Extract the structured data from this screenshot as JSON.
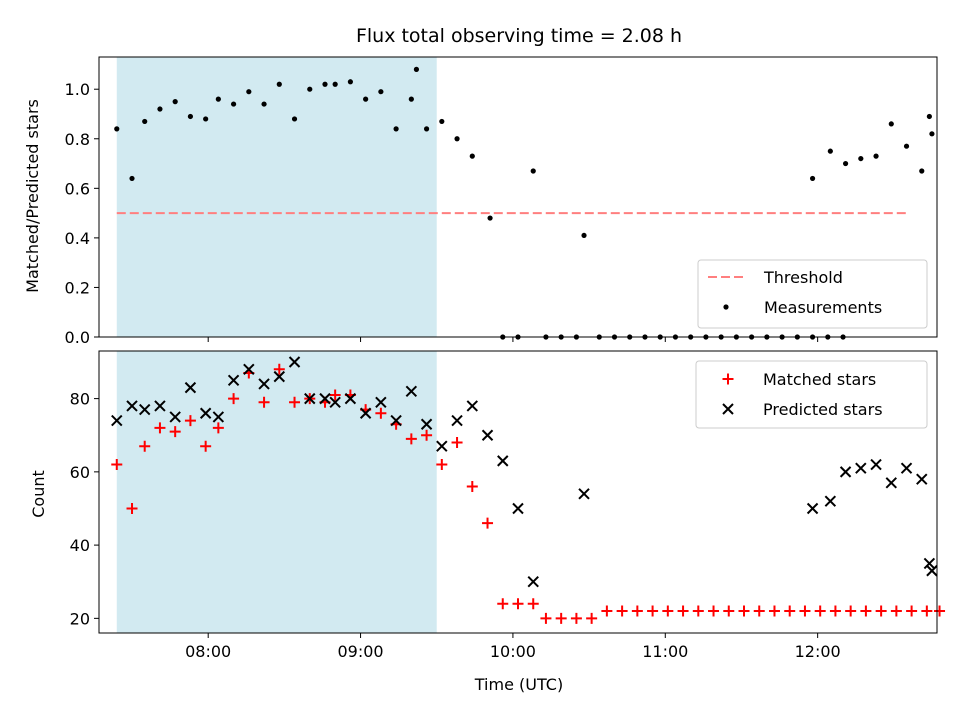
{
  "title": "Flux total observing time = 2.08 h",
  "colors": {
    "shade": "#add8e6",
    "threshold": "#ff7f7f",
    "measurement": "#000000",
    "matched": "#ff0000",
    "predicted": "#000000"
  },
  "chart_data": [
    {
      "type": "scatter",
      "ylabel": "Matched/Predicted stars",
      "xlabel": "",
      "xlim": [
        "07:17",
        "12:47"
      ],
      "ylim": [
        0,
        1.13
      ],
      "yticks": [
        "0.0",
        "0.2",
        "0.4",
        "0.6",
        "0.8",
        "1.0"
      ],
      "ytick_values": [
        0,
        0.2,
        0.4,
        0.6,
        0.8,
        1.0
      ],
      "xticks": [
        "08:00",
        "09:00",
        "10:00",
        "11:00",
        "12:00"
      ],
      "shaded_span": [
        "07:24",
        "09:30"
      ],
      "legend_placement": "lower-right",
      "threshold": {
        "name": "Threshold",
        "y": 0.5,
        "x": [
          "07:24",
          "12:35"
        ]
      },
      "series": [
        {
          "name": "Measurements",
          "points": [
            [
              "07:24",
              0.84
            ],
            [
              "07:30",
              0.64
            ],
            [
              "07:35",
              0.87
            ],
            [
              "07:41",
              0.92
            ],
            [
              "07:47",
              0.95
            ],
            [
              "07:53",
              0.89
            ],
            [
              "07:59",
              0.88
            ],
            [
              "08:04",
              0.96
            ],
            [
              "08:10",
              0.94
            ],
            [
              "08:16",
              0.99
            ],
            [
              "08:22",
              0.94
            ],
            [
              "08:28",
              1.02
            ],
            [
              "08:34",
              0.88
            ],
            [
              "08:40",
              1.0
            ],
            [
              "08:46",
              1.02
            ],
            [
              "08:50",
              1.02
            ],
            [
              "08:56",
              1.03
            ],
            [
              "09:02",
              0.96
            ],
            [
              "09:08",
              0.99
            ],
            [
              "09:14",
              0.84
            ],
            [
              "09:20",
              0.96
            ],
            [
              "09:22",
              1.08
            ],
            [
              "09:26",
              0.84
            ],
            [
              "09:32",
              0.87
            ],
            [
              "09:38",
              0.8
            ],
            [
              "09:44",
              0.73
            ],
            [
              "09:51",
              0.48
            ],
            [
              "09:56",
              0.0
            ],
            [
              "10:02",
              0.0
            ],
            [
              "10:08",
              0.67
            ],
            [
              "10:13",
              0.0
            ],
            [
              "10:19",
              0.0
            ],
            [
              "10:25",
              0.0
            ],
            [
              "10:28",
              0.41
            ],
            [
              "10:34",
              0.0
            ],
            [
              "10:40",
              0.0
            ],
            [
              "10:46",
              0.0
            ],
            [
              "10:52",
              0.0
            ],
            [
              "10:58",
              0.0
            ],
            [
              "11:04",
              0.0
            ],
            [
              "11:10",
              0.0
            ],
            [
              "11:16",
              0.0
            ],
            [
              "11:22",
              0.0
            ],
            [
              "11:28",
              0.0
            ],
            [
              "11:34",
              0.0
            ],
            [
              "11:40",
              0.0
            ],
            [
              "11:46",
              0.0
            ],
            [
              "11:52",
              0.0
            ],
            [
              "11:58",
              0.0
            ],
            [
              "12:04",
              0.0
            ],
            [
              "12:10",
              0.0
            ],
            [
              "11:58",
              0.64
            ],
            [
              "12:05",
              0.75
            ],
            [
              "12:11",
              0.7
            ],
            [
              "12:17",
              0.72
            ],
            [
              "12:23",
              0.73
            ],
            [
              "12:29",
              0.86
            ],
            [
              "12:35",
              0.77
            ],
            [
              "12:41",
              0.67
            ],
            [
              "12:44",
              0.89
            ],
            [
              "12:45",
              0.82
            ]
          ]
        }
      ]
    },
    {
      "type": "scatter",
      "ylabel": "Count",
      "xlabel": "Time (UTC)",
      "xlim": [
        "07:17",
        "12:47"
      ],
      "ylim": [
        16,
        93
      ],
      "yticks": [
        "20",
        "40",
        "60",
        "80"
      ],
      "ytick_values": [
        20,
        40,
        60,
        80
      ],
      "xticks": [
        "08:00",
        "09:00",
        "10:00",
        "11:00",
        "12:00"
      ],
      "shaded_span": [
        "07:24",
        "09:30"
      ],
      "legend_placement": "upper-right",
      "series": [
        {
          "name": "Matched stars",
          "marker": "plus",
          "points": [
            [
              "07:24",
              62
            ],
            [
              "07:30",
              50
            ],
            [
              "07:35",
              67
            ],
            [
              "07:41",
              72
            ],
            [
              "07:47",
              71
            ],
            [
              "07:53",
              74
            ],
            [
              "07:59",
              67
            ],
            [
              "08:04",
              72
            ],
            [
              "08:10",
              80
            ],
            [
              "08:16",
              87
            ],
            [
              "08:22",
              79
            ],
            [
              "08:28",
              88
            ],
            [
              "08:34",
              79
            ],
            [
              "08:40",
              80
            ],
            [
              "08:46",
              79
            ],
            [
              "08:50",
              81
            ],
            [
              "08:56",
              81
            ],
            [
              "09:02",
              77
            ],
            [
              "09:08",
              76
            ],
            [
              "09:14",
              73
            ],
            [
              "09:20",
              69
            ],
            [
              "09:26",
              70
            ],
            [
              "09:32",
              62
            ],
            [
              "09:38",
              68
            ],
            [
              "09:44",
              56
            ],
            [
              "09:50",
              46
            ],
            [
              "09:56",
              24
            ],
            [
              "10:02",
              24
            ],
            [
              "10:08",
              24
            ],
            [
              "10:13",
              20
            ],
            [
              "10:19",
              20
            ],
            [
              "10:25",
              20
            ],
            [
              "10:31",
              20
            ],
            [
              "10:37",
              22
            ],
            [
              "10:43",
              22
            ],
            [
              "10:49",
              22
            ],
            [
              "10:55",
              22
            ],
            [
              "11:01",
              22
            ],
            [
              "11:07",
              22
            ],
            [
              "11:13",
              22
            ],
            [
              "11:19",
              22
            ],
            [
              "11:25",
              22
            ],
            [
              "11:31",
              22
            ],
            [
              "11:37",
              22
            ],
            [
              "11:43",
              22
            ],
            [
              "11:49",
              22
            ],
            [
              "11:55",
              22
            ],
            [
              "12:01",
              22
            ],
            [
              "12:07",
              22
            ],
            [
              "12:13",
              22
            ],
            [
              "12:19",
              22
            ],
            [
              "12:25",
              22
            ],
            [
              "12:31",
              22
            ],
            [
              "12:37",
              22
            ],
            [
              "12:43",
              22
            ],
            [
              "12:48",
              22
            ]
          ]
        },
        {
          "name": "Predicted stars",
          "marker": "x",
          "points": [
            [
              "07:24",
              74
            ],
            [
              "07:30",
              78
            ],
            [
              "07:35",
              77
            ],
            [
              "07:41",
              78
            ],
            [
              "07:47",
              75
            ],
            [
              "07:53",
              83
            ],
            [
              "07:59",
              76
            ],
            [
              "08:04",
              75
            ],
            [
              "08:10",
              85
            ],
            [
              "08:16",
              88
            ],
            [
              "08:22",
              84
            ],
            [
              "08:28",
              86
            ],
            [
              "08:34",
              90
            ],
            [
              "08:40",
              80
            ],
            [
              "08:46",
              80
            ],
            [
              "08:50",
              79
            ],
            [
              "08:56",
              80
            ],
            [
              "09:02",
              76
            ],
            [
              "09:08",
              79
            ],
            [
              "09:14",
              74
            ],
            [
              "09:20",
              82
            ],
            [
              "09:26",
              73
            ],
            [
              "09:32",
              67
            ],
            [
              "09:38",
              74
            ],
            [
              "09:44",
              78
            ],
            [
              "09:50",
              70
            ],
            [
              "09:56",
              63
            ],
            [
              "10:02",
              50
            ],
            [
              "10:08",
              30
            ],
            [
              "10:28",
              54
            ],
            [
              "11:58",
              50
            ],
            [
              "12:05",
              52
            ],
            [
              "12:11",
              60
            ],
            [
              "12:17",
              61
            ],
            [
              "12:23",
              62
            ],
            [
              "12:29",
              57
            ],
            [
              "12:35",
              61
            ],
            [
              "12:41",
              58
            ],
            [
              "12:44",
              35
            ],
            [
              "12:45",
              33
            ]
          ]
        }
      ]
    }
  ]
}
